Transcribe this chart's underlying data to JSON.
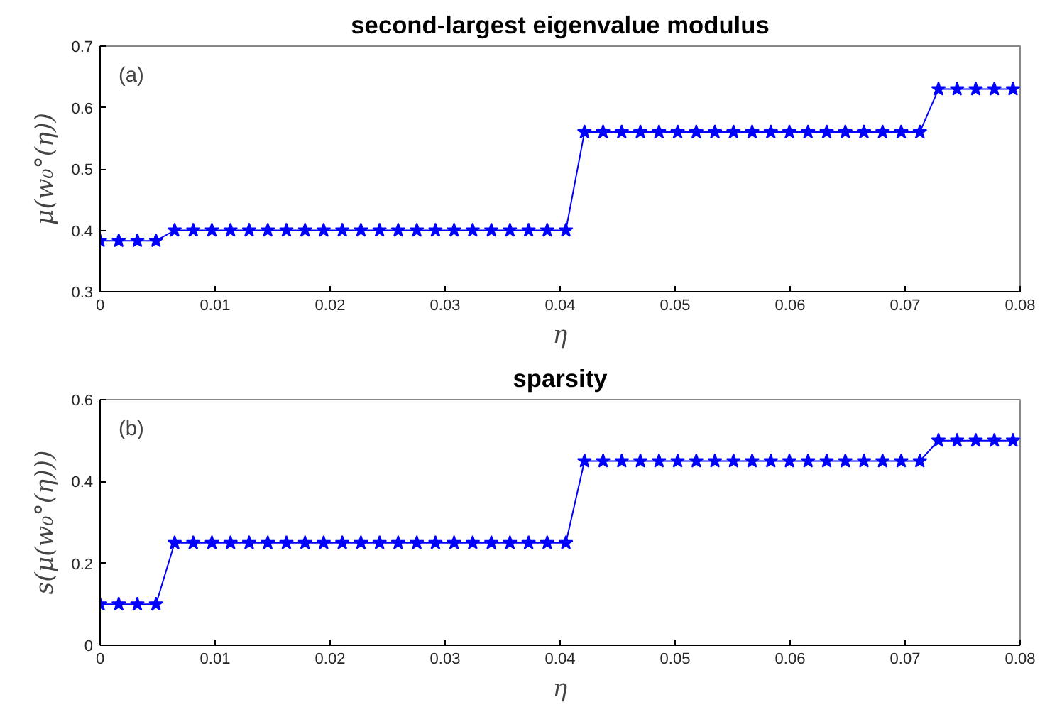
{
  "chart_data": [
    {
      "type": "line",
      "title": "second-largest eigenvalue modulus",
      "xlabel": "η",
      "ylabel": "μ(w₀°(η))",
      "annotations": [
        "(a)"
      ],
      "x": [
        0,
        0.00162,
        0.00324,
        0.00486,
        0.00648,
        0.0081,
        0.00972,
        0.01134,
        0.01296,
        0.01458,
        0.0162,
        0.01782,
        0.01944,
        0.02106,
        0.02268,
        0.0243,
        0.02592,
        0.02754,
        0.02916,
        0.03078,
        0.0324,
        0.03402,
        0.03564,
        0.03726,
        0.03888,
        0.0405,
        0.04212,
        0.04374,
        0.04536,
        0.04698,
        0.0486,
        0.05022,
        0.05184,
        0.05346,
        0.05508,
        0.0567,
        0.05832,
        0.05994,
        0.06156,
        0.06318,
        0.0648,
        0.06642,
        0.06804,
        0.06966,
        0.07128,
        0.0729,
        0.07452,
        0.07614,
        0.07776,
        0.07938
      ],
      "series": [
        {
          "color": "#0000ff",
          "values": [
            0.383,
            0.383,
            0.383,
            0.383,
            0.4,
            0.4,
            0.4,
            0.4,
            0.4,
            0.4,
            0.4,
            0.4,
            0.4,
            0.4,
            0.4,
            0.4,
            0.4,
            0.4,
            0.4,
            0.4,
            0.4,
            0.4,
            0.4,
            0.4,
            0.4,
            0.4,
            0.56,
            0.56,
            0.56,
            0.56,
            0.56,
            0.56,
            0.56,
            0.56,
            0.56,
            0.56,
            0.56,
            0.56,
            0.56,
            0.56,
            0.56,
            0.56,
            0.56,
            0.56,
            0.56,
            0.63,
            0.63,
            0.63,
            0.63,
            0.63
          ]
        }
      ],
      "xlim": [
        0,
        0.08
      ],
      "xticks": [
        0,
        0.01,
        0.02,
        0.03,
        0.04,
        0.05,
        0.06,
        0.07,
        0.08
      ],
      "ylim": [
        0.3,
        0.7
      ],
      "yticks": [
        0.3,
        0.4,
        0.5,
        0.6,
        0.7
      ],
      "marker": "star",
      "line_style": "solid",
      "grid": false
    },
    {
      "type": "line",
      "title": "sparsity",
      "xlabel": "η",
      "ylabel": "s(μ(w₀°(η)))",
      "annotations": [
        "(b)"
      ],
      "x": [
        0,
        0.00162,
        0.00324,
        0.00486,
        0.00648,
        0.0081,
        0.00972,
        0.01134,
        0.01296,
        0.01458,
        0.0162,
        0.01782,
        0.01944,
        0.02106,
        0.02268,
        0.0243,
        0.02592,
        0.02754,
        0.02916,
        0.03078,
        0.0324,
        0.03402,
        0.03564,
        0.03726,
        0.03888,
        0.0405,
        0.04212,
        0.04374,
        0.04536,
        0.04698,
        0.0486,
        0.05022,
        0.05184,
        0.05346,
        0.05508,
        0.0567,
        0.05832,
        0.05994,
        0.06156,
        0.06318,
        0.0648,
        0.06642,
        0.06804,
        0.06966,
        0.07128,
        0.0729,
        0.07452,
        0.07614,
        0.07776,
        0.07938
      ],
      "series": [
        {
          "color": "#0000ff",
          "values": [
            0.1,
            0.1,
            0.1,
            0.1,
            0.25,
            0.25,
            0.25,
            0.25,
            0.25,
            0.25,
            0.25,
            0.25,
            0.25,
            0.25,
            0.25,
            0.25,
            0.25,
            0.25,
            0.25,
            0.25,
            0.25,
            0.25,
            0.25,
            0.25,
            0.25,
            0.25,
            0.45,
            0.45,
            0.45,
            0.45,
            0.45,
            0.45,
            0.45,
            0.45,
            0.45,
            0.45,
            0.45,
            0.45,
            0.45,
            0.45,
            0.45,
            0.45,
            0.45,
            0.45,
            0.45,
            0.5,
            0.5,
            0.5,
            0.5,
            0.5
          ]
        }
      ],
      "xlim": [
        0,
        0.08
      ],
      "xticks": [
        0,
        0.01,
        0.02,
        0.03,
        0.04,
        0.05,
        0.06,
        0.07,
        0.08
      ],
      "ylim": [
        0,
        0.6
      ],
      "yticks": [
        0,
        0.2,
        0.4,
        0.6
      ],
      "marker": "star",
      "line_style": "solid",
      "grid": false
    }
  ]
}
